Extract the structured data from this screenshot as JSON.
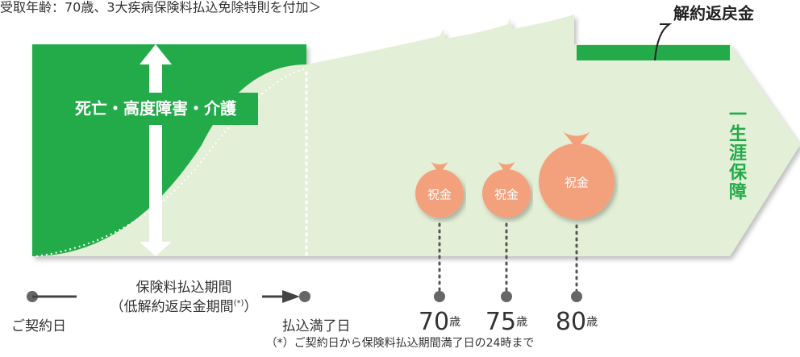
{
  "header": {
    "title": "受取年齢：70歳、3大疾病保険料払込免除特則を付加＞"
  },
  "labels": {
    "surrender": "解約返戻金",
    "death": "死亡・高度障害・介護",
    "lifetime": "一生涯保障"
  },
  "bags": [
    "祝金",
    "祝金",
    "祝金"
  ],
  "timeline": {
    "start": "ご契約日",
    "period": "保険料払込期間",
    "low_period": "（低解約返戻金期間",
    "note_mark": "(*)",
    "close": "）",
    "end": "払込満了日"
  },
  "ages": [
    {
      "num": "70",
      "unit": "歳"
    },
    {
      "num": "75",
      "unit": "歳"
    },
    {
      "num": "80",
      "unit": "歳"
    }
  ],
  "footnote": "（*）ご契約日から保険料払込期間満了日の24時まで"
}
